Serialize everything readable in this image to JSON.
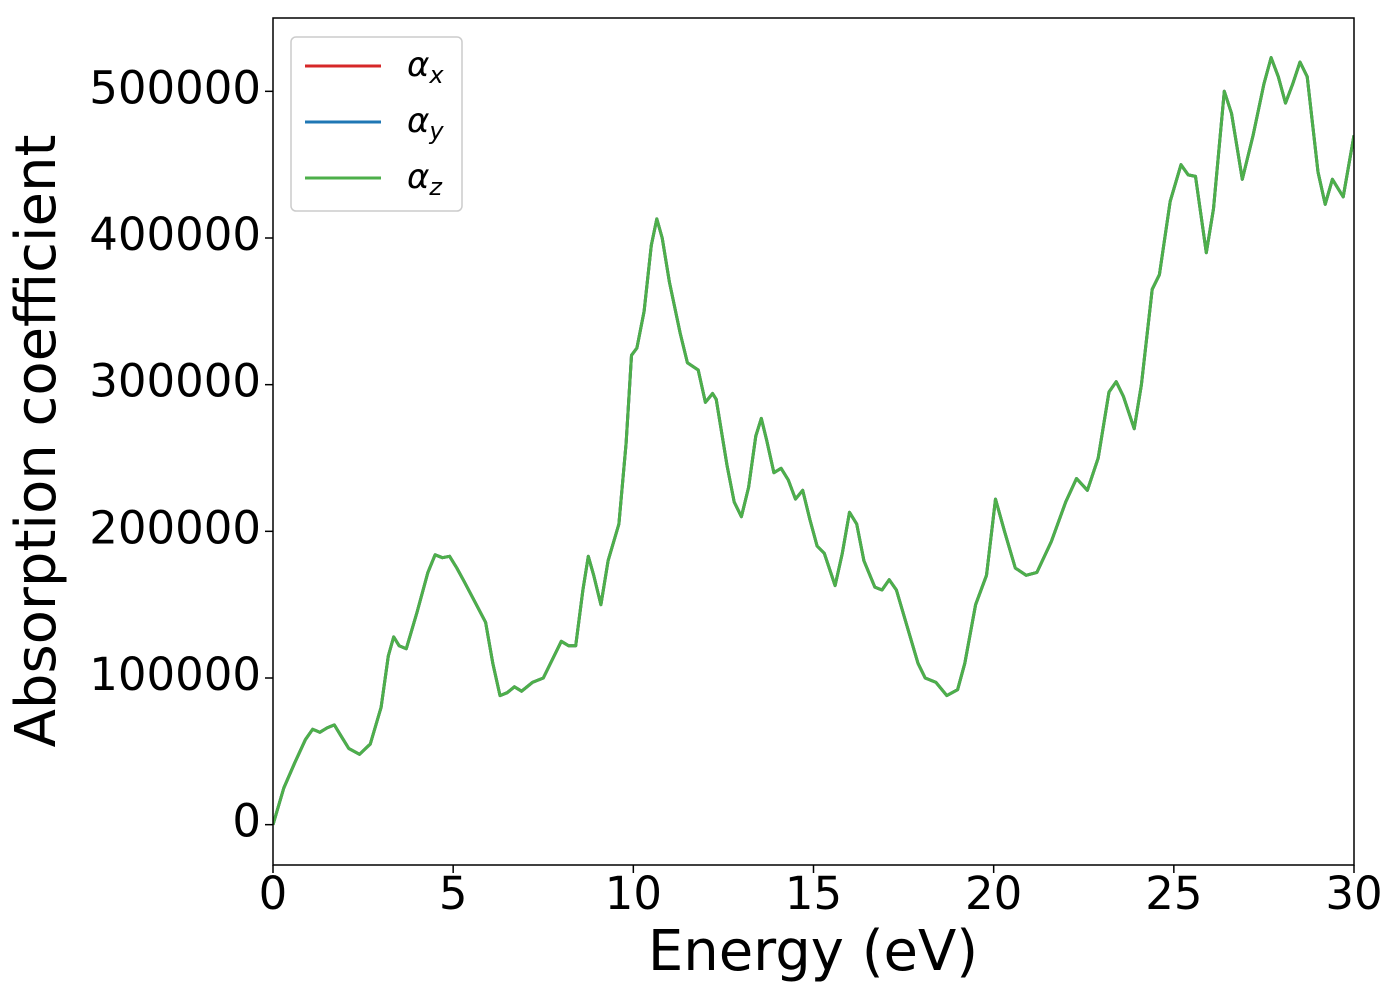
{
  "chart_data": {
    "type": "line",
    "xlabel": "Energy (eV)",
    "ylabel": "Absorption coefficient",
    "x": [
      0,
      0.3,
      0.6,
      0.9,
      1.1,
      1.3,
      1.5,
      1.7,
      1.9,
      2.1,
      2.4,
      2.7,
      3.0,
      3.2,
      3.35,
      3.5,
      3.7,
      4.0,
      4.3,
      4.5,
      4.7,
      4.9,
      5.1,
      5.3,
      5.6,
      5.9,
      6.1,
      6.3,
      6.5,
      6.7,
      6.9,
      7.2,
      7.5,
      7.8,
      8.0,
      8.2,
      8.4,
      8.6,
      8.75,
      8.9,
      9.1,
      9.3,
      9.6,
      9.8,
      9.95,
      10.1,
      10.3,
      10.5,
      10.65,
      10.8,
      11.0,
      11.3,
      11.5,
      11.8,
      12.0,
      12.2,
      12.3,
      12.6,
      12.8,
      13.0,
      13.2,
      13.4,
      13.55,
      13.7,
      13.9,
      14.1,
      14.3,
      14.5,
      14.7,
      14.9,
      15.1,
      15.3,
      15.6,
      15.8,
      16.0,
      16.2,
      16.4,
      16.7,
      16.9,
      17.1,
      17.3,
      17.6,
      17.9,
      18.1,
      18.4,
      18.7,
      19.0,
      19.2,
      19.5,
      19.8,
      20.05,
      20.3,
      20.6,
      20.9,
      21.2,
      21.6,
      22.0,
      22.3,
      22.6,
      22.9,
      23.2,
      23.4,
      23.6,
      23.9,
      24.1,
      24.4,
      24.6,
      24.9,
      25.2,
      25.4,
      25.6,
      25.9,
      26.1,
      26.4,
      26.6,
      26.9,
      27.2,
      27.5,
      27.7,
      27.9,
      28.1,
      28.3,
      28.5,
      28.7,
      29.0,
      29.2,
      29.4,
      29.7,
      30.0
    ],
    "series": [
      {
        "name": "αx",
        "color": "#d62728",
        "values": [
          0,
          25000,
          42000,
          58000,
          65000,
          63000,
          66000,
          68000,
          60000,
          52000,
          48000,
          55000,
          80000,
          115000,
          128000,
          122000,
          120000,
          145000,
          172000,
          184000,
          182000,
          183000,
          175000,
          166000,
          152000,
          138000,
          110000,
          88000,
          90000,
          94000,
          91000,
          97000,
          100000,
          115000,
          125000,
          122000,
          122000,
          160000,
          183000,
          170000,
          150000,
          180000,
          205000,
          260000,
          320000,
          325000,
          350000,
          395000,
          413000,
          400000,
          370000,
          335000,
          315000,
          310000,
          288000,
          294000,
          290000,
          245000,
          220000,
          210000,
          230000,
          265000,
          277000,
          262000,
          240000,
          243000,
          235000,
          222000,
          228000,
          208000,
          190000,
          185000,
          163000,
          185000,
          213000,
          205000,
          180000,
          162000,
          160000,
          167000,
          160000,
          135000,
          110000,
          100000,
          97000,
          88000,
          92000,
          110000,
          150000,
          170000,
          222000,
          200000,
          175000,
          170000,
          172000,
          193000,
          220000,
          236000,
          228000,
          250000,
          295000,
          302000,
          292000,
          270000,
          300000,
          365000,
          375000,
          425000,
          450000,
          443000,
          442000,
          390000,
          420000,
          500000,
          485000,
          440000,
          470000,
          505000,
          523000,
          510000,
          492000,
          505000,
          520000,
          510000,
          445000,
          423000,
          440000,
          428000,
          470000
        ]
      },
      {
        "name": "αy",
        "color": "#1f77b4",
        "values": [
          0,
          25000,
          42000,
          58000,
          65000,
          63000,
          66000,
          68000,
          60000,
          52000,
          48000,
          55000,
          80000,
          115000,
          128000,
          122000,
          120000,
          145000,
          172000,
          184000,
          182000,
          183000,
          175000,
          166000,
          152000,
          138000,
          110000,
          88000,
          90000,
          94000,
          91000,
          97000,
          100000,
          115000,
          125000,
          122000,
          122000,
          160000,
          183000,
          170000,
          150000,
          180000,
          205000,
          260000,
          320000,
          325000,
          350000,
          395000,
          413000,
          400000,
          370000,
          335000,
          315000,
          310000,
          288000,
          294000,
          290000,
          245000,
          220000,
          210000,
          230000,
          265000,
          277000,
          262000,
          240000,
          243000,
          235000,
          222000,
          228000,
          208000,
          190000,
          185000,
          163000,
          185000,
          213000,
          205000,
          180000,
          162000,
          160000,
          167000,
          160000,
          135000,
          110000,
          100000,
          97000,
          88000,
          92000,
          110000,
          150000,
          170000,
          222000,
          200000,
          175000,
          170000,
          172000,
          193000,
          220000,
          236000,
          228000,
          250000,
          295000,
          302000,
          292000,
          270000,
          300000,
          365000,
          375000,
          425000,
          450000,
          443000,
          442000,
          390000,
          420000,
          500000,
          485000,
          440000,
          470000,
          505000,
          523000,
          510000,
          492000,
          505000,
          520000,
          510000,
          445000,
          423000,
          440000,
          428000,
          470000
        ]
      },
      {
        "name": "αz",
        "color": "#4daf4a",
        "values": [
          0,
          25000,
          42000,
          58000,
          65000,
          63000,
          66000,
          68000,
          60000,
          52000,
          48000,
          55000,
          80000,
          115000,
          128000,
          122000,
          120000,
          145000,
          172000,
          184000,
          182000,
          183000,
          175000,
          166000,
          152000,
          138000,
          110000,
          88000,
          90000,
          94000,
          91000,
          97000,
          100000,
          115000,
          125000,
          122000,
          122000,
          160000,
          183000,
          170000,
          150000,
          180000,
          205000,
          260000,
          320000,
          325000,
          350000,
          395000,
          413000,
          400000,
          370000,
          335000,
          315000,
          310000,
          288000,
          294000,
          290000,
          245000,
          220000,
          210000,
          230000,
          265000,
          277000,
          262000,
          240000,
          243000,
          235000,
          222000,
          228000,
          208000,
          190000,
          185000,
          163000,
          185000,
          213000,
          205000,
          180000,
          162000,
          160000,
          167000,
          160000,
          135000,
          110000,
          100000,
          97000,
          88000,
          92000,
          110000,
          150000,
          170000,
          222000,
          200000,
          175000,
          170000,
          172000,
          193000,
          220000,
          236000,
          228000,
          250000,
          295000,
          302000,
          292000,
          270000,
          300000,
          365000,
          375000,
          425000,
          450000,
          443000,
          442000,
          390000,
          420000,
          500000,
          485000,
          440000,
          470000,
          505000,
          523000,
          510000,
          492000,
          505000,
          520000,
          510000,
          445000,
          423000,
          440000,
          428000,
          470000
        ]
      }
    ],
    "xlim": [
      0,
      30
    ],
    "xticks": [
      0,
      5,
      10,
      15,
      20,
      25,
      30
    ],
    "ylim": [
      -27500,
      550000
    ],
    "yticks": [
      0,
      100000,
      200000,
      300000,
      400000,
      500000
    ],
    "legend": "upper left"
  }
}
